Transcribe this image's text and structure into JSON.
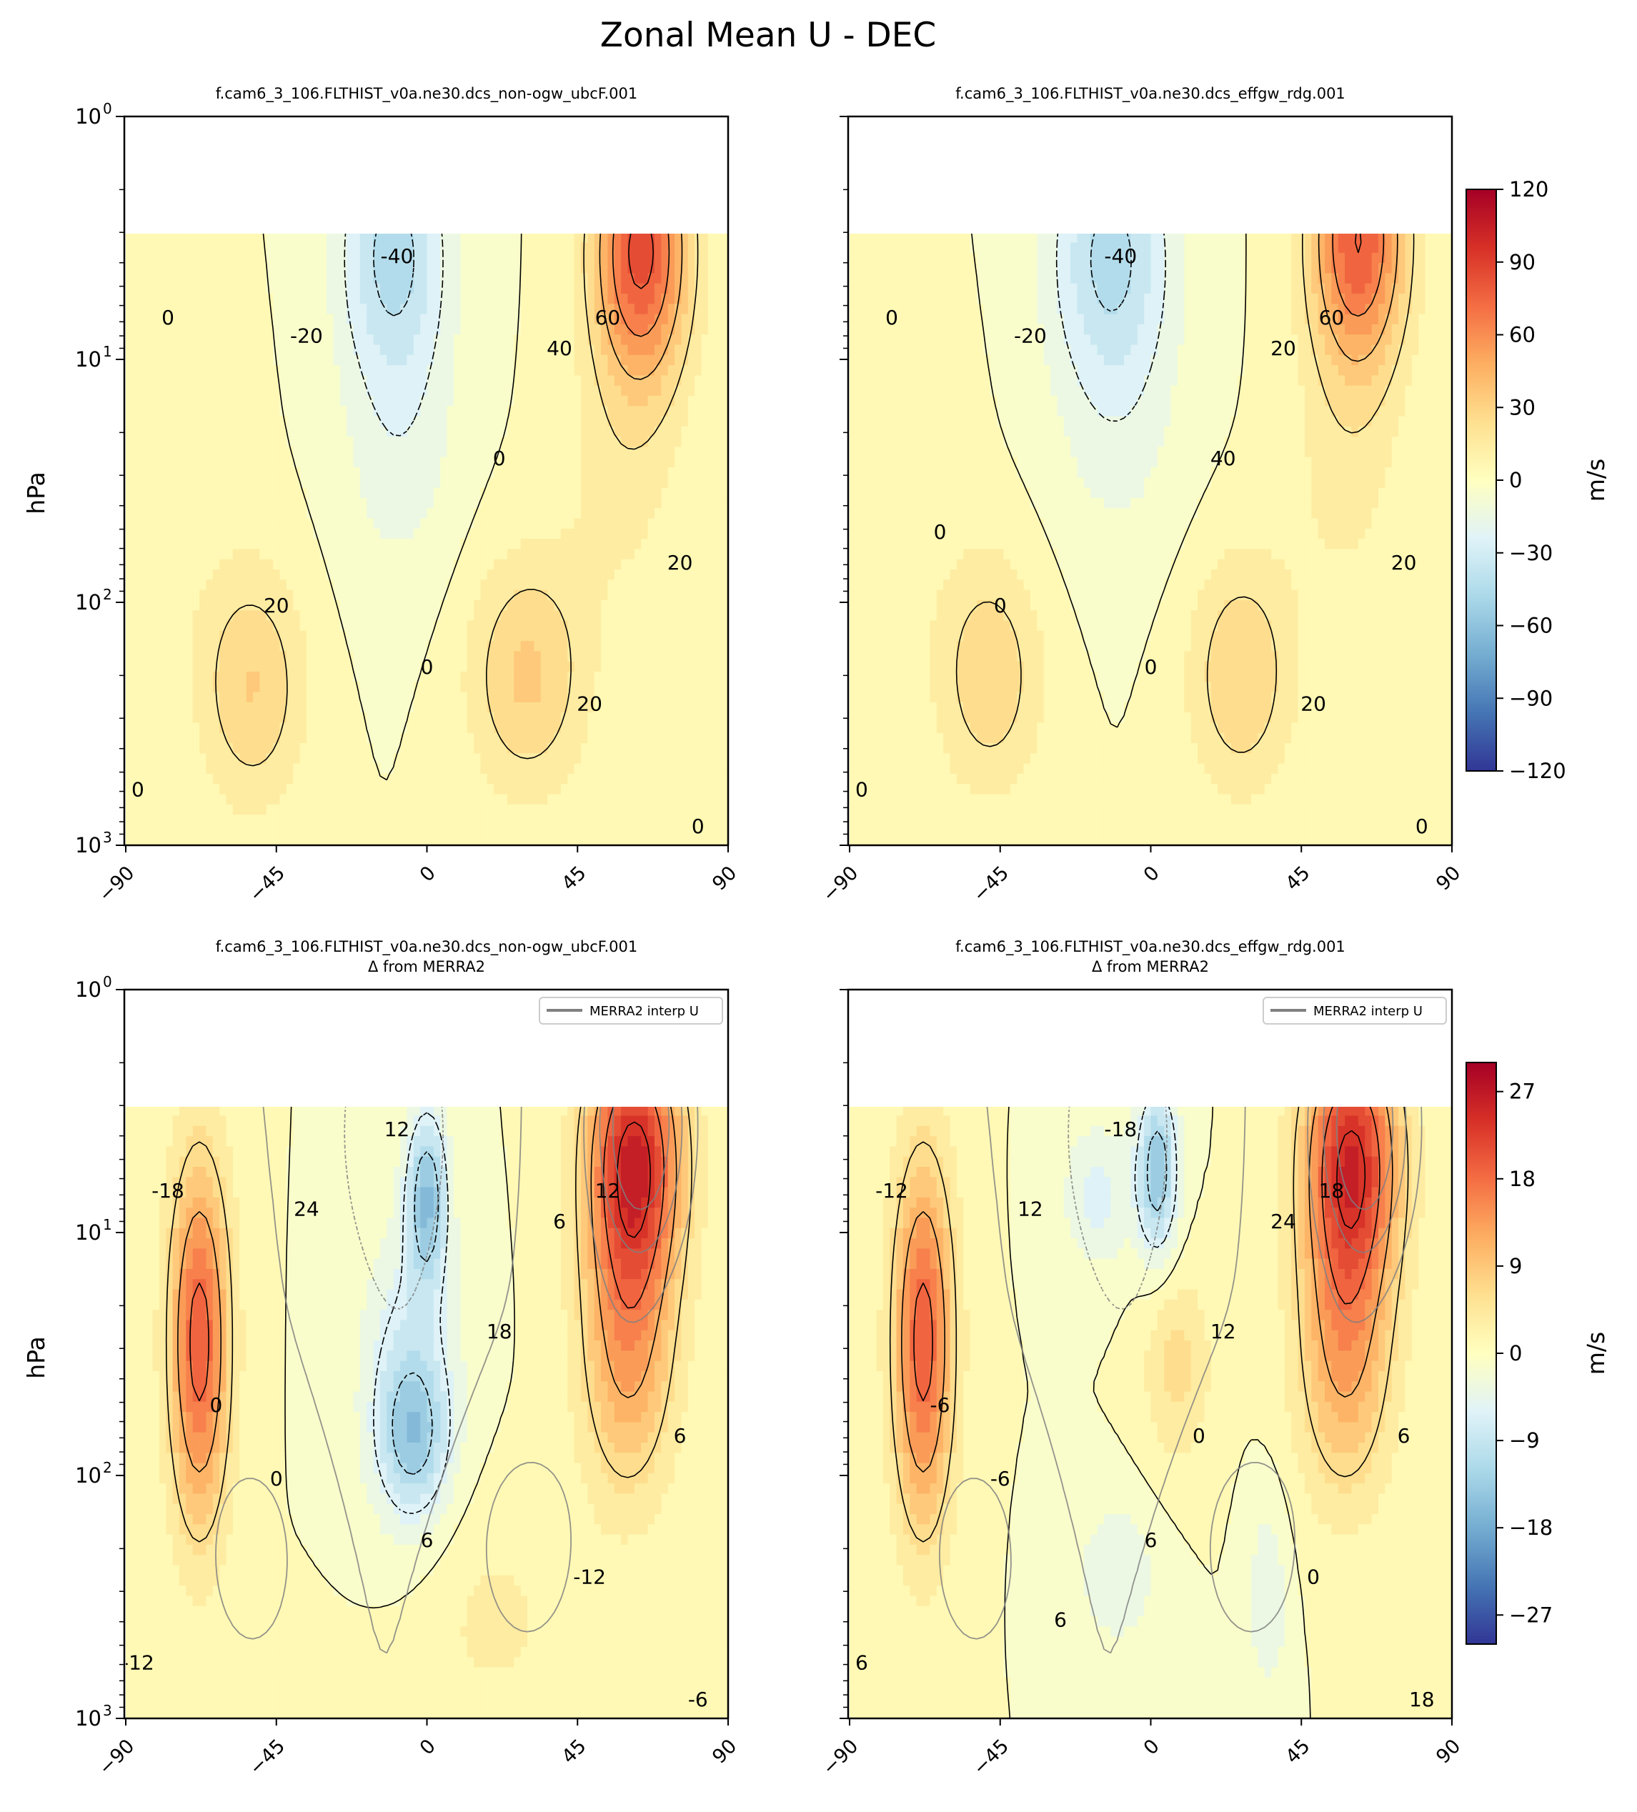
{
  "figure": {
    "title": "Zonal Mean U - DEC"
  },
  "chart_data": [
    {
      "type": "heatmap",
      "panel": "top-left",
      "title": "f.cam6_3_106.FLTHIST_v0a.ne30.dcs_non-ogw_ubcF.001",
      "ylabel": "hPa",
      "x_ticks": [
        "−90",
        "−45",
        "0",
        "45",
        "90"
      ],
      "y_ticks": [
        "10",
        "10",
        "10",
        "10"
      ],
      "y_exponents": [
        "0",
        "1",
        "2",
        "3"
      ],
      "xlim": [
        -90,
        90
      ],
      "ylim_hPa": [
        1000,
        1
      ],
      "data_top_hPa": 3,
      "jets": [
        {
          "lat": -52,
          "p": 230,
          "u": 28
        },
        {
          "lat": 30,
          "p": 200,
          "u": 31
        },
        {
          "lat": 62,
          "p": 4,
          "u": 80
        },
        {
          "lat": -10,
          "p": 4,
          "u": -42
        }
      ],
      "contour_labels": [
        "0",
        "-40",
        "-20",
        "40",
        "60",
        "0",
        "20",
        "20",
        "20",
        "0",
        "0",
        "0"
      ]
    },
    {
      "type": "heatmap",
      "panel": "top-right",
      "title": "f.cam6_3_106.FLTHIST_v0a.ne30.dcs_effgw_rdg.001",
      "x_ticks": [
        "−90",
        "−45",
        "0",
        "45",
        "90"
      ],
      "xlim": [
        -90,
        90
      ],
      "ylim_hPa": [
        1000,
        1
      ],
      "jets": [
        {
          "lat": -45,
          "p": 220,
          "u": 27
        },
        {
          "lat": 27,
          "p": 200,
          "u": 30
        },
        {
          "lat": 60,
          "p": 4,
          "u": 78
        },
        {
          "lat": -12,
          "p": 4,
          "u": -42
        }
      ],
      "contour_labels": [
        "0",
        "-40",
        "-20",
        "20",
        "60",
        "40",
        "0",
        "20",
        "20",
        "0",
        "0",
        "0",
        "0"
      ]
    },
    {
      "type": "heatmap",
      "panel": "bottom-left",
      "title": "f.cam6_3_106.FLTHIST_v0a.ne30.dcs_non-ogw_ubcF.001",
      "subtitle": "Δ from MERRA2",
      "ylabel": "hPa",
      "legend": "MERRA2 interp U",
      "legend_position": "top-right",
      "x_ticks": [
        "−90",
        "−45",
        "0",
        "45",
        "90"
      ],
      "xlim": [
        -90,
        90
      ],
      "ylim_hPa": [
        1000,
        1
      ],
      "contour_labels": [
        "-18",
        "12",
        "24",
        "6",
        "12",
        "18",
        "0",
        "-12",
        "6",
        "-12",
        "-6",
        "6",
        "0"
      ]
    },
    {
      "type": "heatmap",
      "panel": "bottom-right",
      "title": "f.cam6_3_106.FLTHIST_v0a.ne30.dcs_effgw_rdg.001",
      "subtitle": "Δ from MERRA2",
      "legend": "MERRA2 interp U",
      "legend_position": "top-right",
      "x_ticks": [
        "−90",
        "−45",
        "0",
        "45",
        "90"
      ],
      "xlim": [
        -90,
        90
      ],
      "ylim_hPa": [
        1000,
        1
      ],
      "contour_labels": [
        "-12",
        "-18",
        "12",
        "24",
        "18",
        "12",
        "-6",
        "0",
        "6",
        "6",
        "18",
        "6",
        "-6",
        "0",
        "6"
      ]
    }
  ],
  "colorbars": [
    {
      "label": "m/s",
      "ticks": [
        "120",
        "90",
        "60",
        "30",
        "0",
        "−30",
        "−60",
        "−90",
        "−120"
      ],
      "vmin": -120,
      "vmax": 120
    },
    {
      "label": "m/s",
      "ticks": [
        "27",
        "18",
        "9",
        "0",
        "−9",
        "−18",
        "−27"
      ],
      "vmin": -30,
      "vmax": 30
    }
  ],
  "colors": {
    "cmap": [
      "#313695",
      "#4575b4",
      "#74add1",
      "#abd9e9",
      "#e0f3f8",
      "#ffffbf",
      "#fee090",
      "#fdae61",
      "#f46d43",
      "#d73027",
      "#a50026"
    ],
    "contour": "#000000",
    "merra_contour": "#808080"
  }
}
